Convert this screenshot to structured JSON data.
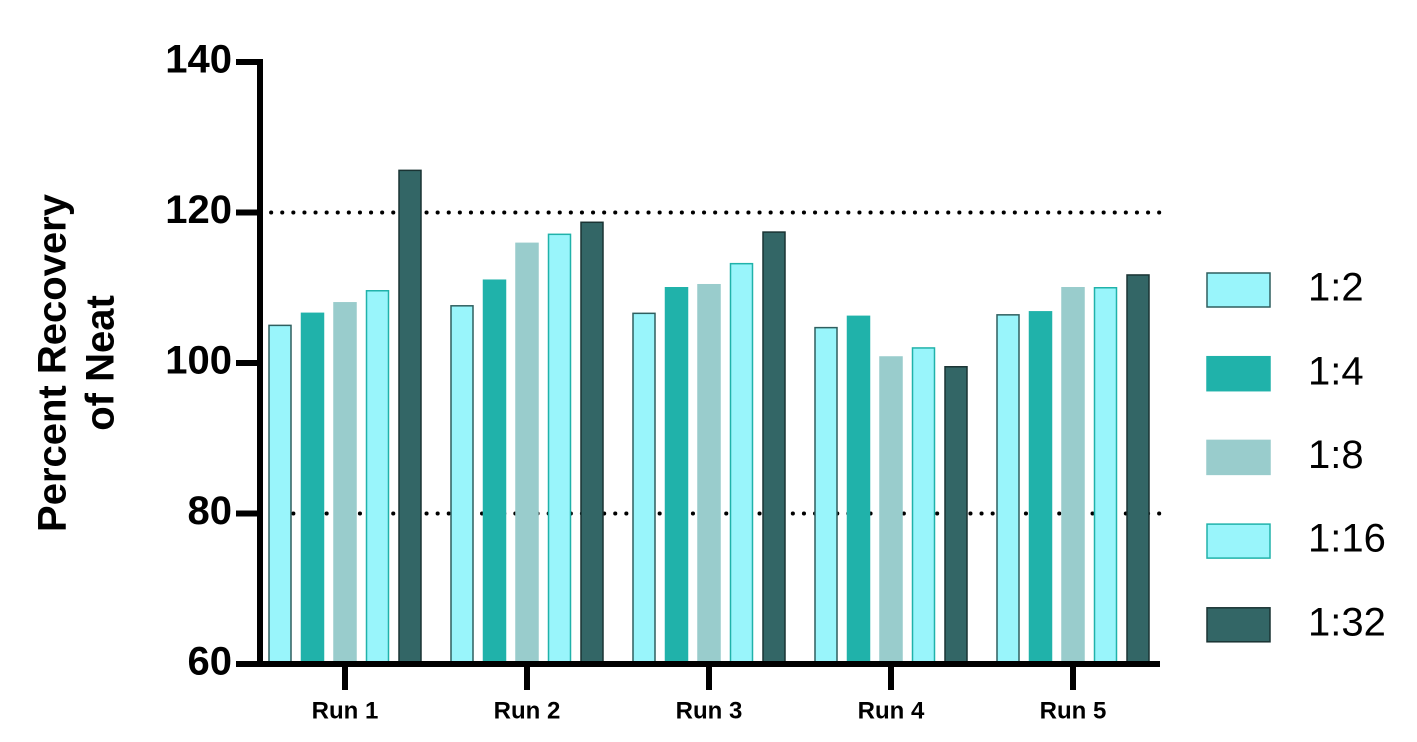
{
  "chart_data": {
    "type": "bar",
    "y_label": [
      "Percent Recovery",
      "of Neat"
    ],
    "categories": [
      "Run 1",
      "Run 2",
      "Run 3",
      "Run 4",
      "Run 5"
    ],
    "series": [
      {
        "name": "1:2",
        "color": "#99f5fb",
        "stroke": "#2f5f5f",
        "values": [
          105.0,
          107.6,
          106.6,
          104.7,
          106.4
        ]
      },
      {
        "name": "1:4",
        "color": "#20b2aa",
        "stroke": "#20b2aa",
        "values": [
          106.6,
          111.0,
          110.0,
          106.2,
          106.8
        ]
      },
      {
        "name": "1:8",
        "color": "#99cccc",
        "stroke": "#99cccc",
        "values": [
          108.0,
          115.9,
          110.4,
          100.8,
          110.0
        ]
      },
      {
        "name": "1:16",
        "color": "#99f5fb",
        "stroke": "#20b2aa",
        "values": [
          109.6,
          117.1,
          113.2,
          102.0,
          110.0
        ]
      },
      {
        "name": "1:32",
        "color": "#336666",
        "stroke": "#1a3333",
        "values": [
          125.6,
          118.7,
          117.4,
          99.5,
          111.7
        ]
      }
    ],
    "ylim": [
      60,
      140
    ],
    "yticks": [
      60,
      80,
      100,
      120,
      140
    ],
    "reference_lines": [
      80,
      120
    ],
    "legend": "right"
  }
}
